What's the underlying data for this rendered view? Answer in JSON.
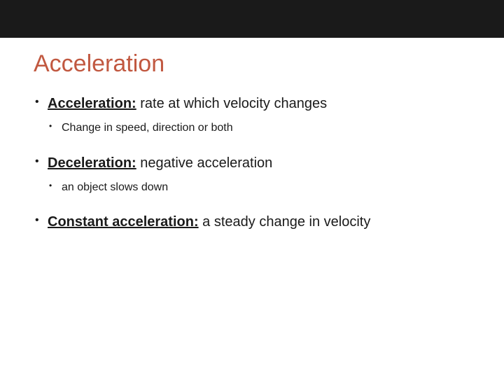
{
  "slide": {
    "title": "Acceleration",
    "title_color": "#c15840",
    "top_bar_color": "#1a1a1a",
    "background_color": "#ffffff",
    "text_color": "#1a1a1a",
    "title_fontsize": 34,
    "body_fontsize_l1": 20,
    "body_fontsize_l2": 16,
    "items": [
      {
        "term": "Acceleration:",
        "definition": "  rate at which velocity changes",
        "sub": "Change in speed, direction or both"
      },
      {
        "term": "Deceleration:",
        "definition": "  negative acceleration",
        "sub": "an object slows down"
      },
      {
        "term": "Constant acceleration:",
        "definition": "  a steady change in velocity",
        "sub": null
      }
    ]
  }
}
